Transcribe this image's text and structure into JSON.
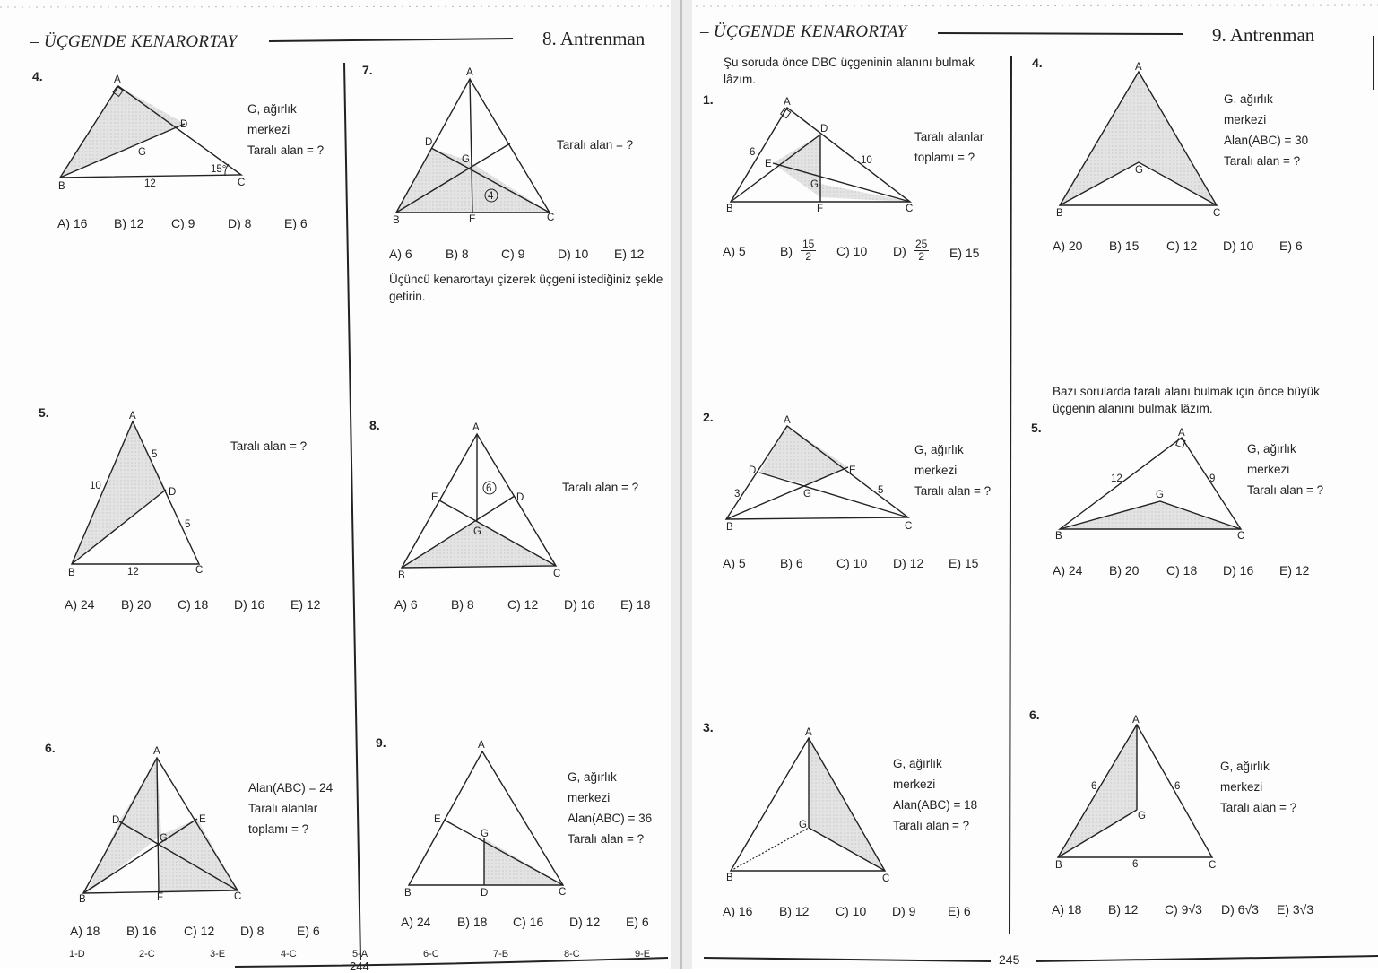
{
  "left_page": {
    "section_title": "ÜÇGENDE KENARORTAY",
    "drill_title": "8. Antrenman",
    "page_number": "244",
    "problems": [
      {
        "number": "4.",
        "given": [
          "G, ağırlık",
          "merkezi",
          "Taralı alan = ?"
        ],
        "labels": {
          "A": "A",
          "B": "B",
          "C": "C",
          "D": "D",
          "G": "G",
          "side": "12",
          "angle": "15°"
        },
        "answers": [
          "A) 16",
          "B) 12",
          "C) 9",
          "D) 8",
          "E) 6"
        ]
      },
      {
        "number": "5.",
        "given": [
          "Taralı alan = ?"
        ],
        "labels": {
          "A": "A",
          "B": "B",
          "C": "C",
          "D": "D",
          "ab": "10",
          "ad": "5",
          "dc": "5",
          "bc": "12"
        },
        "answers": [
          "A) 24",
          "B) 20",
          "C) 18",
          "D) 16",
          "E) 12"
        ]
      },
      {
        "number": "6.",
        "given": [
          "Alan(ABC) = 24",
          "Taralı alanlar",
          "toplamı = ?"
        ],
        "labels": {
          "A": "A",
          "B": "B",
          "C": "C",
          "D": "D",
          "E": "E",
          "F": "F",
          "G": "G"
        },
        "answers": [
          "A) 18",
          "B) 16",
          "C) 12",
          "D) 8",
          "E) 6"
        ]
      },
      {
        "number": "7.",
        "given": [
          "Taralı alan = ?"
        ],
        "labels": {
          "A": "A",
          "B": "B",
          "C": "C",
          "D": "D",
          "E": "E",
          "G": "G",
          "area": "4"
        },
        "answers": [
          "A) 6",
          "B) 8",
          "C) 9",
          "D) 10",
          "E) 12"
        ],
        "tip": [
          "Üçüncü kenarortayı çizerek üçgeni istediğiniz şekle",
          "getirin."
        ]
      },
      {
        "number": "8.",
        "given": [
          "Taralı alan = ?"
        ],
        "labels": {
          "A": "A",
          "B": "B",
          "C": "C",
          "D": "D",
          "E": "E",
          "G": "G",
          "area": "6"
        },
        "answers": [
          "A) 6",
          "B) 8",
          "C) 12",
          "D) 16",
          "E) 18"
        ]
      },
      {
        "number": "9.",
        "given": [
          "G, ağırlık",
          "merkezi",
          "Alan(ABC) = 36",
          "Taralı alan = ?"
        ],
        "labels": {
          "A": "A",
          "B": "B",
          "C": "C",
          "D": "D",
          "E": "E",
          "G": "G"
        },
        "answers": [
          "A) 24",
          "B) 18",
          "C) 16",
          "D) 12",
          "E) 6"
        ]
      }
    ],
    "answer_key": [
      "1-D",
      "2-C",
      "3-E",
      "4-C",
      "5-A",
      "6-C",
      "7-B",
      "8-C",
      "9-E"
    ]
  },
  "right_page": {
    "section_title": "ÜÇGENDE KENARORTAY",
    "drill_title": "9. Antrenman",
    "page_number": "245",
    "intro": [
      "Şu soruda önce DBC üçgeninin alanını bulmak",
      "lâzım."
    ],
    "mid_note": [
      "Bazı sorularda taralı alanı bulmak için önce büyük",
      "üçgenin alanını bulmak lâzım."
    ],
    "problems": [
      {
        "number": "1.",
        "given": [
          "Taralı alanlar",
          "toplamı = ?"
        ],
        "labels": {
          "A": "A",
          "B": "B",
          "C": "C",
          "D": "D",
          "E": "E",
          "F": "F",
          "G": "G",
          "ab": "6",
          "dc": "10"
        },
        "answers": [
          "A) 5",
          "B)",
          "C) 10",
          "D)",
          "E) 15"
        ],
        "fracB": {
          "n": "15",
          "d": "2"
        },
        "fracD": {
          "n": "25",
          "d": "2"
        }
      },
      {
        "number": "2.",
        "given": [
          "G, ağırlık",
          "merkezi",
          "Taralı alan = ?"
        ],
        "labels": {
          "A": "A",
          "B": "B",
          "C": "C",
          "D": "D",
          "E": "E",
          "G": "G",
          "bd": "3",
          "ec": "5"
        },
        "answers": [
          "A) 5",
          "B) 6",
          "C) 10",
          "D) 12",
          "E) 15"
        ]
      },
      {
        "number": "3.",
        "given": [
          "G, ağırlık",
          "merkezi",
          "Alan(ABC) = 18",
          "Taralı alan = ?"
        ],
        "labels": {
          "A": "A",
          "B": "B",
          "C": "C",
          "G": "G"
        },
        "answers": [
          "A) 16",
          "B) 12",
          "C) 10",
          "D) 9",
          "E) 6"
        ]
      },
      {
        "number": "4.",
        "given": [
          "G, ağırlık",
          "merkezi",
          "Alan(ABC) = 30",
          "Taralı alan = ?"
        ],
        "labels": {
          "A": "A",
          "B": "B",
          "C": "C",
          "G": "G"
        },
        "answers": [
          "A) 20",
          "B) 15",
          "C) 12",
          "D) 10",
          "E) 6"
        ]
      },
      {
        "number": "5.",
        "given": [
          "G, ağırlık",
          "merkezi",
          "Taralı alan = ?"
        ],
        "labels": {
          "A": "A",
          "B": "B",
          "C": "C",
          "G": "G",
          "ab": "12",
          "ac": "9"
        },
        "answers": [
          "A) 24",
          "B) 20",
          "C) 18",
          "D) 16",
          "E) 12"
        ]
      },
      {
        "number": "6.",
        "given": [
          "G, ağırlık",
          "merkezi",
          "Taralı alan = ?"
        ],
        "labels": {
          "A": "A",
          "B": "B",
          "C": "C",
          "G": "G",
          "ab": "6",
          "ac": "6",
          "bc": "6"
        },
        "answers": [
          "A) 18",
          "B) 12",
          "C) 9√3",
          "D) 6√3",
          "E) 3√3"
        ]
      }
    ]
  },
  "colors": {
    "ink": "#222222",
    "shade": "#d9d9d9",
    "paper": "#fdfdfd"
  }
}
